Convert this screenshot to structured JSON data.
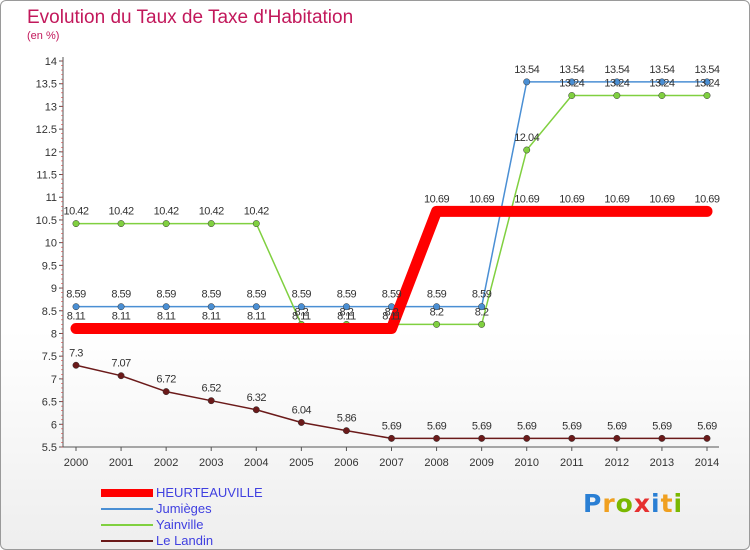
{
  "header": {
    "title": "Evolution du Taux de Taxe d'Habitation",
    "subtitle": "(en %)"
  },
  "logo": {
    "letters": [
      "P",
      "r",
      "o",
      "x",
      "i",
      "t",
      "i"
    ],
    "colors": [
      "#2a7fd4",
      "#f0a020",
      "#7ab800",
      "#e63030",
      "#2a7fd4",
      "#f0a020",
      "#7ab800"
    ]
  },
  "chart_data": {
    "type": "line",
    "x": [
      2000,
      2001,
      2002,
      2003,
      2004,
      2005,
      2006,
      2007,
      2008,
      2009,
      2010,
      2011,
      2012,
      2013,
      2014
    ],
    "ylim": [
      5.5,
      14
    ],
    "yticks": [
      5.5,
      6,
      6.5,
      7,
      7.5,
      8,
      8.5,
      9,
      9.5,
      10,
      10.5,
      11,
      11.5,
      12,
      12.5,
      13,
      13.5,
      14
    ],
    "grid": false,
    "legend_position": "bottom-left",
    "series": [
      {
        "name": "HEURTEAUVILLE",
        "color": "#ff0000",
        "values": [
          8.11,
          8.11,
          8.11,
          8.11,
          8.11,
          8.11,
          8.11,
          8.11,
          10.69,
          10.69,
          10.69,
          10.69,
          10.69,
          10.69,
          10.69
        ],
        "labels": [
          "8.11",
          "8.11",
          "8.11",
          "8.11",
          "8.11",
          "8.11",
          "8.11",
          "8.11",
          "10.69",
          "10.69",
          "10.69",
          "10.69",
          "10.69",
          "10.69",
          "10.69"
        ]
      },
      {
        "name": "Jumièges",
        "color": "#4a8fd4",
        "values": [
          8.59,
          8.59,
          8.59,
          8.59,
          8.59,
          8.59,
          8.59,
          8.59,
          8.59,
          8.59,
          13.54,
          13.54,
          13.54,
          13.54,
          13.54
        ],
        "labels": [
          "8.59",
          "8.59",
          "8.59",
          "8.59",
          "8.59",
          "8.59",
          "8.59",
          "8.59",
          "8.59",
          "8.59",
          "13.54",
          "13.54",
          "13.54",
          "13.54",
          "13.54"
        ]
      },
      {
        "name": "Yainville",
        "color": "#80d040",
        "values": [
          10.42,
          10.42,
          10.42,
          10.42,
          10.42,
          8.2,
          8.2,
          8.2,
          8.2,
          8.2,
          12.04,
          13.24,
          13.24,
          13.24,
          13.24
        ],
        "labels": [
          "10.42",
          "10.42",
          "10.42",
          "10.42",
          "10.42",
          "8.2",
          "8.2",
          "8.2",
          "8.2",
          "8.2",
          "12.04",
          "13.24",
          "13.24",
          "13.24",
          "13.24"
        ]
      },
      {
        "name": "Le Landin",
        "color": "#6b1a1a",
        "values": [
          7.3,
          7.07,
          6.72,
          6.52,
          6.32,
          6.04,
          5.86,
          5.69,
          5.69,
          5.69,
          5.69,
          5.69,
          5.69,
          5.69,
          5.69
        ],
        "labels": [
          "7.3",
          "7.07",
          "6.72",
          "6.52",
          "6.32",
          "6.04",
          "5.86",
          "5.69",
          "5.69",
          "5.69",
          "5.69",
          "5.69",
          "5.69",
          "5.69",
          "5.69"
        ]
      }
    ]
  }
}
